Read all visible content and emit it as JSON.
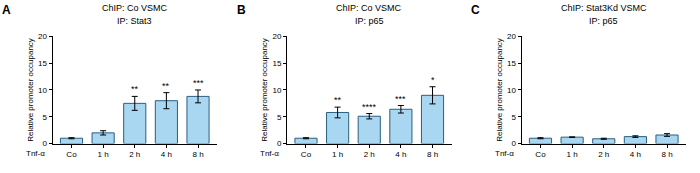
{
  "chart_data": [
    {
      "type": "bar",
      "panel": "A",
      "title": "ChIP: Co VSMC",
      "subtitle": "IP: Stat3",
      "xlabel": "Tnf-α",
      "ylabel": "Relative promoter occupancy",
      "categories": [
        "Co",
        "1 h",
        "2 h",
        "4 h",
        "8 h"
      ],
      "values": [
        1.0,
        2.0,
        7.5,
        8.0,
        8.8
      ],
      "errors": [
        0.1,
        0.4,
        1.3,
        1.5,
        1.2
      ],
      "significance": [
        null,
        null,
        "**",
        "**",
        "***"
      ],
      "color": "#a9d6f0",
      "ylim": [
        0,
        20
      ],
      "yticks": [
        0,
        5,
        10,
        15,
        20
      ],
      "grid": false
    },
    {
      "type": "bar",
      "panel": "B",
      "title": "ChIP: Co VSMC",
      "subtitle": "IP: p65",
      "xlabel": "Tnf-α",
      "ylabel": "Relative promoter occupancy",
      "categories": [
        "Co",
        "1 h",
        "2 h",
        "4 h",
        "8 h"
      ],
      "values": [
        1.0,
        5.8,
        5.1,
        6.4,
        9.0
      ],
      "errors": [
        0.1,
        1.0,
        0.5,
        0.7,
        1.6
      ],
      "significance": [
        null,
        "**",
        "****",
        "***",
        "*"
      ],
      "color": "#a9d6f0",
      "ylim": [
        0,
        20
      ],
      "yticks": [
        0,
        5,
        10,
        15,
        20
      ],
      "grid": false
    },
    {
      "type": "bar",
      "panel": "C",
      "title": "ChIP: Stat3Kd VSMC",
      "subtitle": "IP: p65",
      "xlabel": "Tnf-α",
      "ylabel": "Relative promoter occupancy",
      "categories": [
        "Co",
        "1 h",
        "2 h",
        "4 h",
        "8 h"
      ],
      "values": [
        1.0,
        1.2,
        0.9,
        1.3,
        1.6
      ],
      "errors": [
        0.1,
        0.05,
        0.1,
        0.15,
        0.25
      ],
      "significance": [
        null,
        null,
        null,
        null,
        null
      ],
      "color": "#a9d6f0",
      "ylim": [
        0,
        20
      ],
      "yticks": [
        0,
        5,
        10,
        15,
        20
      ],
      "grid": false
    }
  ]
}
